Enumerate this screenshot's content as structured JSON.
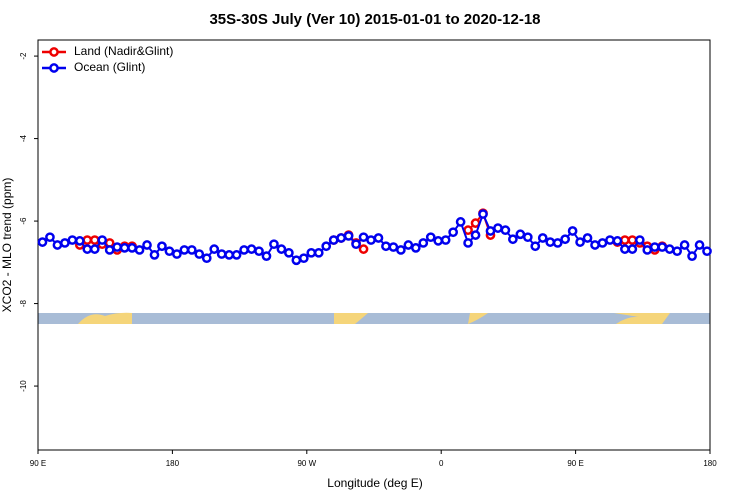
{
  "chart_data": {
    "type": "line",
    "title": "35S-30S July (Ver 10)   2015-01-01 to 2020-12-18",
    "xlabel": "Longitude (deg E)",
    "ylabel": "XCO2 - MLO trend (ppm)",
    "xlim": [
      90,
      540
    ],
    "ylim": [
      -11.55,
      -1.61
    ],
    "xticks": [
      {
        "value": 90,
        "label": "90 E"
      },
      180,
      {
        "value": 270,
        "label": "90 W"
      },
      {
        "value": 360,
        "label": "0"
      },
      {
        "value": 450,
        "label": "90 E"
      },
      {
        "value": 540,
        "label": "180"
      }
    ],
    "yticks": [
      -10,
      -8,
      -6,
      -4,
      -2
    ],
    "legend": "top-left",
    "series": [
      {
        "name": "Land (Nadir&Glint)",
        "color": "#ee0000",
        "x": [
          118,
          123,
          128,
          133,
          138,
          143,
          148,
          153,
          null,
          288,
          293,
          298,
          303,
          308,
          null,
          378,
          383,
          388,
          393,
          null,
          478,
          483,
          488,
          493,
          498,
          503,
          508
        ],
        "values": [
          -6.58,
          -6.46,
          -6.46,
          -6.56,
          -6.53,
          -6.7,
          -6.61,
          -6.61,
          null,
          -6.46,
          -6.41,
          -6.34,
          -6.53,
          -6.68,
          null,
          -6.22,
          -6.05,
          -5.81,
          -6.34,
          null,
          -6.51,
          -6.46,
          -6.46,
          -6.53,
          -6.61,
          -6.7,
          -6.61
        ]
      },
      {
        "name": "Ocean (Glint)",
        "color": "#0000ee",
        "x": [
          93,
          98,
          103,
          108,
          113,
          118,
          123,
          128,
          133,
          138,
          143,
          148,
          153,
          158,
          163,
          168,
          173,
          178,
          183,
          188,
          193,
          198,
          203,
          208,
          213,
          218,
          223,
          228,
          233,
          238,
          243,
          248,
          253,
          258,
          263,
          268,
          273,
          278,
          283,
          288,
          293,
          298,
          303,
          308,
          313,
          318,
          323,
          328,
          333,
          338,
          343,
          348,
          353,
          358,
          363,
          368,
          373,
          378,
          383,
          388,
          393,
          398,
          403,
          408,
          413,
          418,
          423,
          428,
          433,
          438,
          443,
          448,
          453,
          458,
          463,
          468,
          473,
          478,
          483,
          488,
          493,
          498,
          503,
          508,
          513,
          518,
          523,
          528,
          533,
          538
        ],
        "values": [
          -6.51,
          -6.39,
          -6.58,
          -6.53,
          -6.46,
          -6.48,
          -6.68,
          -6.68,
          -6.46,
          -6.7,
          -6.63,
          -6.65,
          -6.65,
          -6.7,
          -6.58,
          -6.82,
          -6.61,
          -6.73,
          -6.8,
          -6.7,
          -6.7,
          -6.8,
          -6.9,
          -6.68,
          -6.8,
          -6.82,
          -6.82,
          -6.7,
          -6.68,
          -6.73,
          -6.85,
          -6.56,
          -6.68,
          -6.77,
          -6.95,
          -6.9,
          -6.77,
          -6.77,
          -6.61,
          -6.46,
          -6.41,
          -6.36,
          -6.56,
          -6.39,
          -6.46,
          -6.41,
          -6.61,
          -6.63,
          -6.7,
          -6.58,
          -6.65,
          -6.53,
          -6.39,
          -6.48,
          -6.46,
          -6.27,
          -6.02,
          -6.53,
          -6.34,
          -5.83,
          -6.24,
          -6.17,
          -6.22,
          -6.44,
          -6.32,
          -6.39,
          -6.61,
          -6.41,
          -6.51,
          -6.53,
          -6.44,
          -6.24,
          -6.51,
          -6.41,
          -6.58,
          -6.53,
          -6.46,
          -6.48,
          -6.68,
          -6.68,
          -6.46,
          -6.7,
          -6.63,
          -6.63,
          -6.68,
          -6.73,
          -6.58,
          -6.85,
          -6.58,
          -6.73
        ]
      }
    ]
  }
}
